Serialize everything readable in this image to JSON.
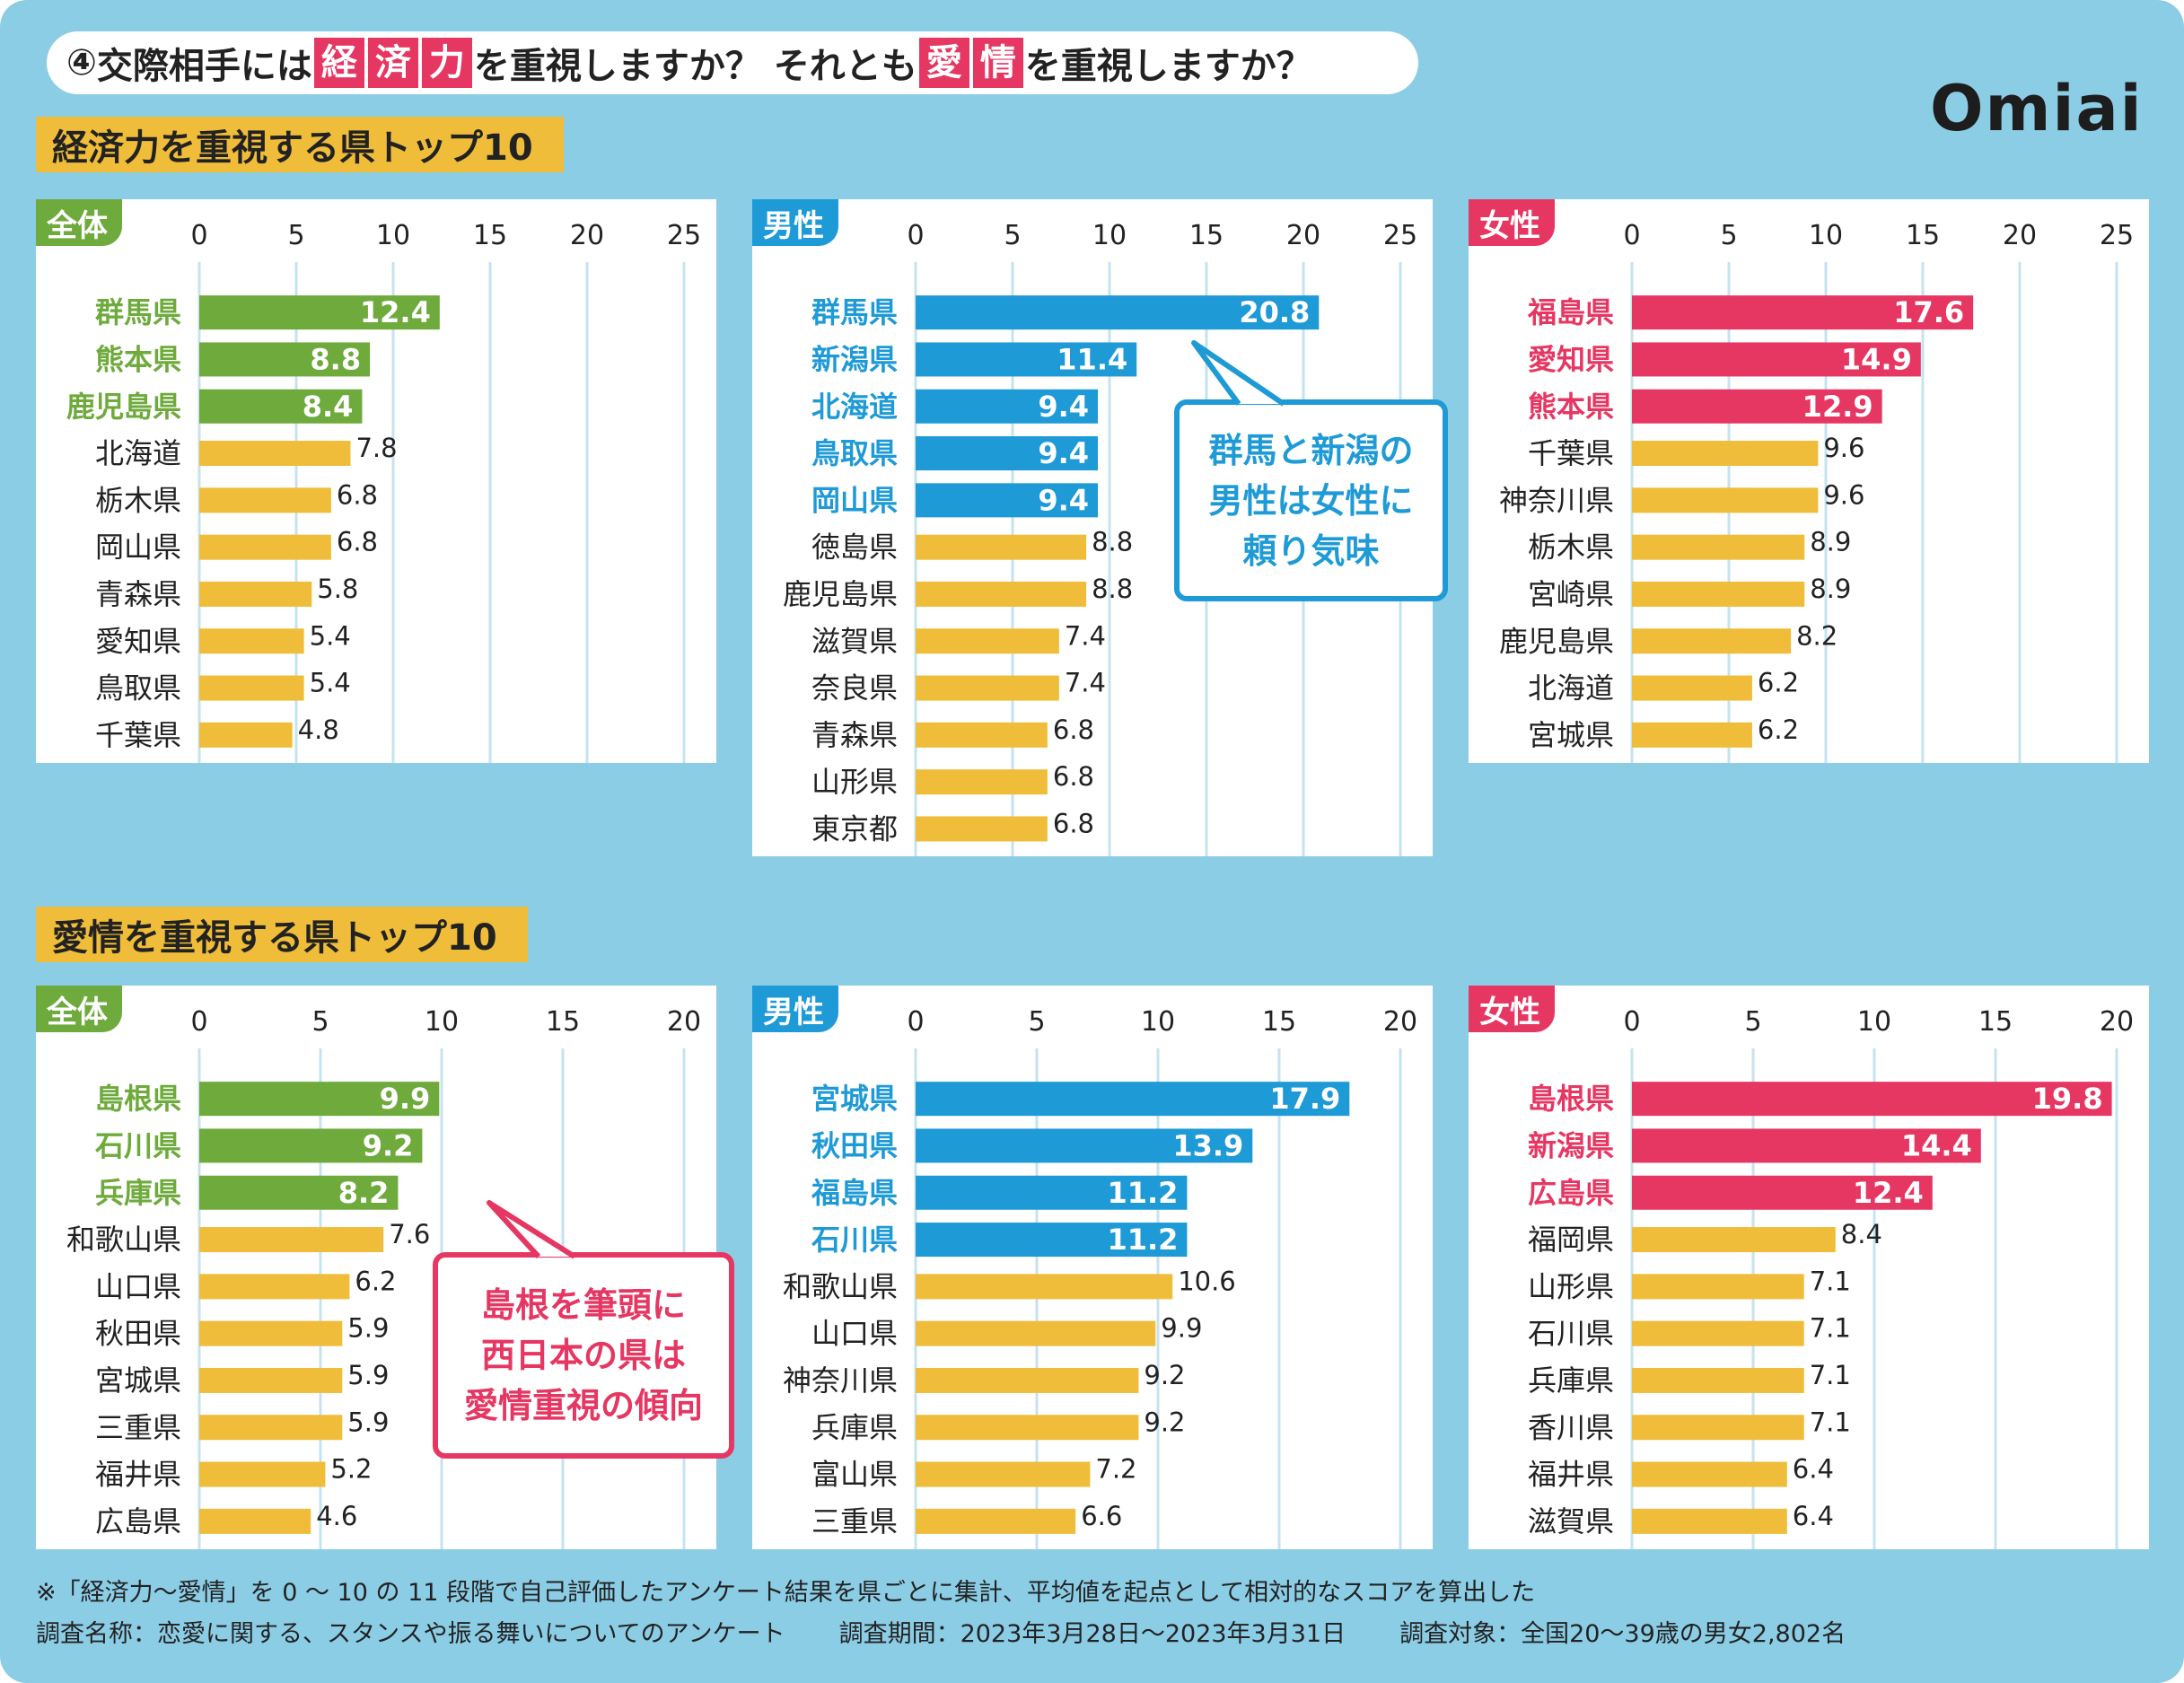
{
  "header": {
    "title_num": "④",
    "title_p1": "交際相手には",
    "title_hl1": [
      "経",
      "済",
      "力"
    ],
    "title_p2": "を重視しますか？ それとも",
    "title_hl2": [
      "愛",
      "情"
    ],
    "title_p3": "を重視しますか？",
    "logo": "Omiai"
  },
  "sections": {
    "economy_title": "経済力を重視する県トップ10",
    "love_title": "愛情を重視する県トップ10"
  },
  "callouts": {
    "economy": [
      "群馬と新潟の",
      "男性は女性に",
      "頼り気味"
    ],
    "love": [
      "島根を筆頭に",
      "西日本の県は",
      "愛情重視の傾向"
    ]
  },
  "colors": {
    "background": "#8ccde6",
    "all": "#6eaa3c",
    "male": "#1e9ad6",
    "female": "#e63763",
    "other": "#f0bd3a",
    "gridline": "#c5e3ef"
  },
  "chart_data": [
    {
      "type": "bar",
      "orientation": "horizontal",
      "group": "economy",
      "tag": "全体",
      "accent": "all",
      "xlim": [
        0,
        25
      ],
      "ticks": [
        0,
        5,
        10,
        15,
        20,
        25
      ],
      "highlight": 3,
      "categories": [
        "群馬県",
        "熊本県",
        "鹿児島県",
        "北海道",
        "栃木県",
        "岡山県",
        "青森県",
        "愛知県",
        "鳥取県",
        "千葉県"
      ],
      "values": [
        12.4,
        8.8,
        8.4,
        7.8,
        6.8,
        6.8,
        5.8,
        5.4,
        5.4,
        4.8
      ]
    },
    {
      "type": "bar",
      "orientation": "horizontal",
      "group": "economy",
      "tag": "男性",
      "accent": "male",
      "xlim": [
        0,
        25
      ],
      "ticks": [
        0,
        5,
        10,
        15,
        20,
        25
      ],
      "highlight": 5,
      "categories": [
        "群馬県",
        "新潟県",
        "北海道",
        "鳥取県",
        "岡山県",
        "徳島県",
        "鹿児島県",
        "滋賀県",
        "奈良県",
        "青森県",
        "山形県",
        "東京都"
      ],
      "values": [
        20.8,
        11.4,
        9.4,
        9.4,
        9.4,
        8.8,
        8.8,
        7.4,
        7.4,
        6.8,
        6.8,
        6.8
      ]
    },
    {
      "type": "bar",
      "orientation": "horizontal",
      "group": "economy",
      "tag": "女性",
      "accent": "female",
      "xlim": [
        0,
        25
      ],
      "ticks": [
        0,
        5,
        10,
        15,
        20,
        25
      ],
      "highlight": 3,
      "categories": [
        "福島県",
        "愛知県",
        "熊本県",
        "千葉県",
        "神奈川県",
        "栃木県",
        "宮崎県",
        "鹿児島県",
        "北海道",
        "宮城県"
      ],
      "values": [
        17.6,
        14.9,
        12.9,
        9.6,
        9.6,
        8.9,
        8.9,
        8.2,
        6.2,
        6.2
      ]
    },
    {
      "type": "bar",
      "orientation": "horizontal",
      "group": "love",
      "tag": "全体",
      "accent": "all",
      "xlim": [
        0,
        20
      ],
      "ticks": [
        0,
        5,
        10,
        15,
        20
      ],
      "highlight": 3,
      "categories": [
        "島根県",
        "石川県",
        "兵庫県",
        "和歌山県",
        "山口県",
        "秋田県",
        "宮城県",
        "三重県",
        "福井県",
        "広島県"
      ],
      "values": [
        9.9,
        9.2,
        8.2,
        7.6,
        6.2,
        5.9,
        5.9,
        5.9,
        5.2,
        4.6
      ]
    },
    {
      "type": "bar",
      "orientation": "horizontal",
      "group": "love",
      "tag": "男性",
      "accent": "male",
      "xlim": [
        0,
        20
      ],
      "ticks": [
        0,
        5,
        10,
        15,
        20
      ],
      "highlight": 4,
      "categories": [
        "宮城県",
        "秋田県",
        "福島県",
        "石川県",
        "和歌山県",
        "山口県",
        "神奈川県",
        "兵庫県",
        "富山県",
        "三重県"
      ],
      "values": [
        17.9,
        13.9,
        11.2,
        11.2,
        10.6,
        9.9,
        9.2,
        9.2,
        7.2,
        6.6
      ]
    },
    {
      "type": "bar",
      "orientation": "horizontal",
      "group": "love",
      "tag": "女性",
      "accent": "female",
      "xlim": [
        0,
        20
      ],
      "ticks": [
        0,
        5,
        10,
        15,
        20
      ],
      "highlight": 3,
      "categories": [
        "島根県",
        "新潟県",
        "広島県",
        "福岡県",
        "山形県",
        "石川県",
        "兵庫県",
        "香川県",
        "福井県",
        "滋賀県"
      ],
      "values": [
        19.8,
        14.4,
        12.4,
        8.4,
        7.1,
        7.1,
        7.1,
        7.1,
        6.4,
        6.4
      ]
    }
  ],
  "footer": {
    "note": "※「経済力〜愛情」を 0 〜 10 の 11 段階で自己評価したアンケート結果を県ごとに集計、平均値を起点として相対的なスコアを算出した",
    "survey_name": "調査名称：恋愛に関する、スタンスや振る舞いについてのアンケート",
    "survey_period": "調査期間：2023年3月28日〜2023年3月31日",
    "survey_target": "調査対象：全国20〜39歳の男女2,802名"
  }
}
